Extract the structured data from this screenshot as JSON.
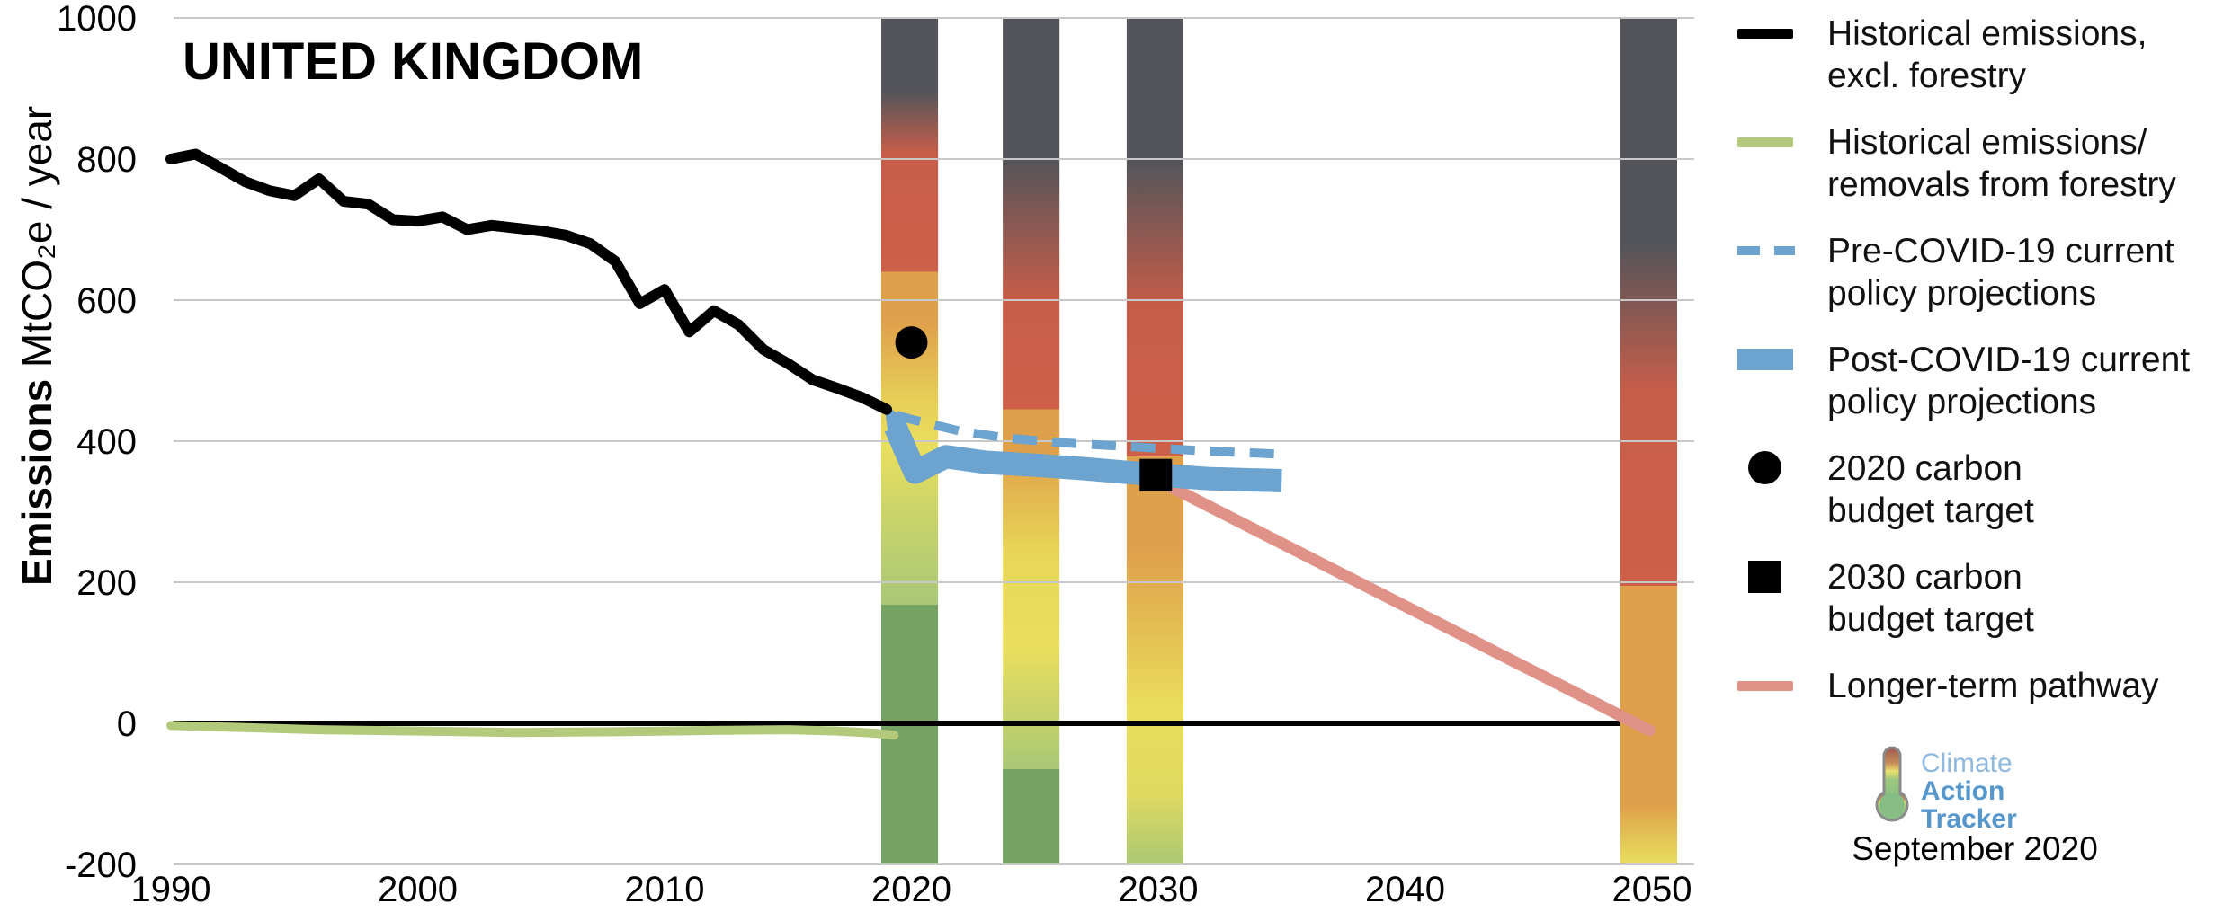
{
  "title": "UNITED KINGDOM",
  "footer": {
    "date": "September 2020"
  },
  "logo": {
    "line1": "Climate",
    "line2": "Action",
    "line3": "Tracker"
  },
  "legend": {
    "items": [
      {
        "key": "historical",
        "swatch": "line",
        "label": "Historical emissions,\nexcl. forestry"
      },
      {
        "key": "forestry",
        "swatch": "green",
        "label": "Historical emissions/\nremovals from forestry"
      },
      {
        "key": "pre-covid",
        "swatch": "dash",
        "label": "Pre-COVID-19 current\npolicy projections"
      },
      {
        "key": "post-covid",
        "swatch": "thick",
        "label": "Post-COVID-19 current\npolicy projections"
      },
      {
        "key": "budget-2020",
        "swatch": "circle",
        "label": "2020 carbon\nbudget target"
      },
      {
        "key": "budget-2030",
        "swatch": "square",
        "label": "2030 carbon\nbudget target"
      },
      {
        "key": "longer-term",
        "swatch": "salmon",
        "label": "Longer-term pathway"
      }
    ]
  },
  "chart_data": {
    "type": "line",
    "title": "UNITED KINGDOM",
    "ylabel_bold": "Emissions",
    "ylabel_rest": " MtCO₂e / year",
    "xlabel": "",
    "ylim": [
      -200,
      1000
    ],
    "xlim": [
      1990,
      2051.7
    ],
    "y_ticks": [
      1000,
      800,
      600,
      400,
      200,
      0,
      -200
    ],
    "x_ticks": [
      1990,
      2000,
      2010,
      2020,
      2030,
      2040,
      2050
    ],
    "grid": "on",
    "legend_position": "right",
    "colors": {
      "grid": "#C8C8C8",
      "historical": "#000000",
      "forestry": "#B3CA7C",
      "projection_blue": "#6CA3CF",
      "pathway_salmon": "#E09288",
      "zero_line": "#000000"
    },
    "zero_line": {
      "from_year": 1990.1,
      "to_year": 2048.7,
      "value": 0
    },
    "series": [
      {
        "name": "Historical emissions, excl. forestry",
        "style": "solid",
        "color": "#000000",
        "width": 12,
        "points": [
          [
            1990,
            800
          ],
          [
            1991,
            807
          ],
          [
            1992,
            788
          ],
          [
            1993,
            768
          ],
          [
            1994,
            755
          ],
          [
            1995,
            748
          ],
          [
            1996,
            772
          ],
          [
            1997,
            740
          ],
          [
            1998,
            736
          ],
          [
            1999,
            714
          ],
          [
            2000,
            712
          ],
          [
            2001,
            718
          ],
          [
            2002,
            700
          ],
          [
            2003,
            706
          ],
          [
            2004,
            702
          ],
          [
            2005,
            698
          ],
          [
            2006,
            692
          ],
          [
            2007,
            680
          ],
          [
            2008,
            655
          ],
          [
            2009,
            595
          ],
          [
            2010,
            615
          ],
          [
            2011,
            555
          ],
          [
            2012,
            585
          ],
          [
            2013,
            565
          ],
          [
            2014,
            530
          ],
          [
            2015,
            510
          ],
          [
            2016,
            487
          ],
          [
            2017,
            475
          ],
          [
            2018,
            462
          ],
          [
            2019,
            445
          ]
        ]
      },
      {
        "name": "Historical emissions/removals from forestry",
        "style": "solid",
        "color": "#B3CA7C",
        "width": 10,
        "points": [
          [
            1990,
            -3
          ],
          [
            1993,
            -6
          ],
          [
            1996,
            -9
          ],
          [
            2000,
            -11
          ],
          [
            2004,
            -13
          ],
          [
            2008,
            -12
          ],
          [
            2012,
            -10
          ],
          [
            2015,
            -9
          ],
          [
            2017,
            -11
          ],
          [
            2018.5,
            -14
          ],
          [
            2019.3,
            -17
          ]
        ]
      },
      {
        "name": "Pre-COVID-19 current policy projections",
        "style": "dashed",
        "color": "#6CA3CF",
        "width": 10,
        "points": [
          [
            2019.4,
            437
          ],
          [
            2020,
            431
          ],
          [
            2022,
            414
          ],
          [
            2024,
            404
          ],
          [
            2026,
            398
          ],
          [
            2028,
            394
          ],
          [
            2030,
            390
          ],
          [
            2032,
            386
          ],
          [
            2034.7,
            382
          ]
        ]
      },
      {
        "name": "Post-COVID-19 current policy projections",
        "style": "solid",
        "color": "#6CA3CF",
        "width": 26,
        "points": [
          [
            2019.35,
            420
          ],
          [
            2020.15,
            356
          ],
          [
            2021.4,
            378
          ],
          [
            2023,
            370
          ],
          [
            2025,
            366
          ],
          [
            2027,
            361
          ],
          [
            2030,
            352
          ],
          [
            2032,
            347
          ],
          [
            2035,
            344
          ]
        ]
      },
      {
        "name": "Longer-term pathway",
        "style": "solid",
        "color": "#E09288",
        "width": 13,
        "points": [
          [
            2030.35,
            338
          ],
          [
            2049.9,
            -10
          ]
        ]
      }
    ],
    "covid_drop_arrow": {
      "color": "#6CA3CF",
      "points": [
        [
          2018.9,
          452
        ],
        [
          2019.9,
          429
        ],
        [
          2019.1,
          399
        ]
      ]
    },
    "markers": [
      {
        "shape": "circle",
        "label": "2020 carbon budget target",
        "year": 2020,
        "value": 540,
        "radius": 18,
        "color": "#000000"
      },
      {
        "shape": "square",
        "label": "2030 carbon budget target",
        "year": 2029.9,
        "value": 352,
        "size": 36,
        "color": "#000000"
      }
    ],
    "rating_bars": [
      {
        "name": "2020 fair-share rating bar",
        "center_year": 2019.93,
        "width_years": 2.3,
        "stops": [
          [
            1000,
            "#54555A"
          ],
          [
            895,
            "#54555A"
          ],
          [
            808,
            "#C75D49"
          ],
          [
            640,
            "#CE5F48"
          ],
          [
            640,
            "#DFA04B"
          ],
          [
            570,
            "#DFA04B"
          ],
          [
            455,
            "#E7D058"
          ],
          [
            390,
            "#E9DE5F"
          ],
          [
            295,
            "#C9D46A"
          ],
          [
            168,
            "#A9C877"
          ],
          [
            168,
            "#76A363"
          ],
          [
            -200,
            "#76A363"
          ]
        ]
      },
      {
        "name": "2025 fair-share rating bar",
        "center_year": 2024.85,
        "width_years": 2.3,
        "stops": [
          [
            1000,
            "#54555A"
          ],
          [
            800,
            "#54555A"
          ],
          [
            600,
            "#C75D49"
          ],
          [
            445,
            "#CE5F48"
          ],
          [
            445,
            "#DFA04B"
          ],
          [
            385,
            "#DFA04B"
          ],
          [
            240,
            "#E8D658"
          ],
          [
            105,
            "#E9DE5F"
          ],
          [
            -15,
            "#BCCF6E"
          ],
          [
            -65,
            "#A9C877"
          ],
          [
            -65,
            "#76A363"
          ],
          [
            -200,
            "#76A363"
          ]
        ]
      },
      {
        "name": "2030 fair-share rating bar",
        "center_year": 2029.87,
        "width_years": 2.3,
        "stops": [
          [
            1000,
            "#54555A"
          ],
          [
            795,
            "#54555A"
          ],
          [
            590,
            "#C75D49"
          ],
          [
            378,
            "#CE5F48"
          ],
          [
            378,
            "#DFA04B"
          ],
          [
            245,
            "#DFA04B"
          ],
          [
            20,
            "#E9DD5C"
          ],
          [
            -100,
            "#DFD960"
          ],
          [
            -200,
            "#ABC873"
          ]
        ]
      },
      {
        "name": "2050 fair-share rating bar",
        "center_year": 2049.87,
        "width_years": 2.3,
        "stops": [
          [
            1000,
            "#54555A"
          ],
          [
            680,
            "#54555A"
          ],
          [
            470,
            "#C75D49"
          ],
          [
            195,
            "#CE5F48"
          ],
          [
            195,
            "#DFA04B"
          ],
          [
            -115,
            "#DFA04B"
          ],
          [
            -160,
            "#E3C254"
          ],
          [
            -200,
            "#E9DE5F"
          ]
        ]
      }
    ]
  }
}
